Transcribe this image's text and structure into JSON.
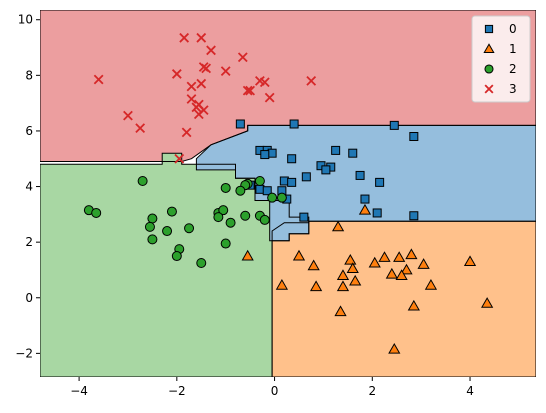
{
  "chart_data": {
    "type": "scatter",
    "subtype": "decision-regions",
    "title": "",
    "xlabel": "",
    "ylabel": "",
    "xlim": [
      -4.8,
      5.35
    ],
    "ylim": [
      -2.85,
      10.35
    ],
    "x_ticks": [
      -4,
      -2,
      0,
      2,
      4
    ],
    "x_tick_labels": [
      "−4",
      "−2",
      "0",
      "2",
      "4"
    ],
    "y_ticks": [
      -2,
      0,
      2,
      4,
      6,
      8,
      10
    ],
    "y_tick_labels": [
      "−2",
      "0",
      "2",
      "4",
      "6",
      "8",
      "10"
    ],
    "grid": false,
    "legend_position": "top-right",
    "classes": [
      {
        "name": "0",
        "marker": "square",
        "color": "#1f77b4",
        "region_color": "#95bedd"
      },
      {
        "name": "1",
        "marker": "triangle",
        "color": "#ff7f0e",
        "region_color": "#ffc18b"
      },
      {
        "name": "2",
        "marker": "circle",
        "color": "#2ca02c",
        "region_color": "#a8d7a3"
      },
      {
        "name": "3",
        "marker": "x",
        "color": "#d62728",
        "region_color": "#ec9e9f"
      }
    ],
    "regions": [
      {
        "class": "3",
        "polygon": [
          [
            -4.8,
            10.35
          ],
          [
            5.35,
            10.35
          ],
          [
            5.35,
            6.2
          ],
          [
            -0.55,
            6.2
          ],
          [
            -0.55,
            6.0
          ],
          [
            -1.3,
            5.5
          ],
          [
            -1.7,
            5.0
          ],
          [
            -1.9,
            4.9
          ],
          [
            -4.8,
            4.9
          ]
        ]
      },
      {
        "class": "2",
        "polygon": [
          [
            -4.8,
            4.8
          ],
          [
            -2.3,
            4.8
          ],
          [
            -2.3,
            5.2
          ],
          [
            -1.9,
            5.2
          ],
          [
            -1.9,
            4.8
          ],
          [
            -0.8,
            4.8
          ],
          [
            -0.8,
            4.3
          ],
          [
            -0.4,
            4.3
          ],
          [
            -0.4,
            3.5
          ],
          [
            0.3,
            3.5
          ],
          [
            0.3,
            2.9
          ],
          [
            0.7,
            2.9
          ],
          [
            0.7,
            2.7
          ],
          [
            0.2,
            2.7
          ],
          [
            -0.05,
            2.4
          ],
          [
            -0.05,
            -2.85
          ],
          [
            -4.8,
            -2.85
          ]
        ]
      },
      {
        "class": "0",
        "polygon": [
          [
            -0.55,
            6.2
          ],
          [
            5.35,
            6.2
          ],
          [
            5.35,
            2.75
          ],
          [
            0.7,
            2.75
          ],
          [
            0.7,
            2.3
          ],
          [
            0.3,
            2.3
          ],
          [
            0.3,
            2.05
          ],
          [
            -0.1,
            2.05
          ],
          [
            -0.1,
            3.5
          ],
          [
            -0.4,
            3.5
          ],
          [
            -0.4,
            4.3
          ],
          [
            -0.8,
            4.3
          ],
          [
            -0.8,
            4.6
          ],
          [
            -1.6,
            4.6
          ],
          [
            -1.6,
            5.0
          ],
          [
            -1.3,
            5.5
          ],
          [
            -0.55,
            6.0
          ]
        ]
      },
      {
        "class": "1",
        "polygon": [
          [
            -0.05,
            2.05
          ],
          [
            0.3,
            2.05
          ],
          [
            0.3,
            2.3
          ],
          [
            0.7,
            2.3
          ],
          [
            0.7,
            2.75
          ],
          [
            5.35,
            2.75
          ],
          [
            5.35,
            -2.85
          ],
          [
            -0.05,
            -2.85
          ]
        ]
      }
    ],
    "series": [
      {
        "name": "0",
        "points": [
          [
            -0.7,
            6.25
          ],
          [
            0.4,
            6.25
          ],
          [
            2.45,
            6.2
          ],
          [
            2.85,
            5.8
          ],
          [
            1.25,
            5.3
          ],
          [
            1.6,
            5.2
          ],
          [
            0.35,
            5.0
          ],
          [
            0.95,
            4.75
          ],
          [
            1.15,
            4.7
          ],
          [
            1.05,
            4.6
          ],
          [
            0.65,
            4.35
          ],
          [
            1.75,
            4.4
          ],
          [
            2.15,
            4.15
          ],
          [
            -0.3,
            5.3
          ],
          [
            -0.15,
            5.3
          ],
          [
            -0.05,
            5.2
          ],
          [
            -0.2,
            5.15
          ],
          [
            -0.5,
            4.05
          ],
          [
            -0.3,
            3.9
          ],
          [
            -0.15,
            3.85
          ],
          [
            0.15,
            3.85
          ],
          [
            0.2,
            4.2
          ],
          [
            0.35,
            4.15
          ],
          [
            0.25,
            3.55
          ],
          [
            1.85,
            3.55
          ],
          [
            2.1,
            3.05
          ],
          [
            2.85,
            2.95
          ],
          [
            0.6,
            2.9
          ]
        ]
      },
      {
        "name": "1",
        "points": [
          [
            1.85,
            3.15
          ],
          [
            1.3,
            2.55
          ],
          [
            -0.55,
            1.5
          ],
          [
            0.5,
            1.5
          ],
          [
            1.55,
            1.35
          ],
          [
            2.25,
            1.45
          ],
          [
            2.55,
            1.45
          ],
          [
            2.8,
            1.55
          ],
          [
            2.05,
            1.25
          ],
          [
            0.8,
            1.15
          ],
          [
            1.6,
            1.05
          ],
          [
            2.7,
            1.0
          ],
          [
            3.05,
            1.2
          ],
          [
            2.4,
            0.85
          ],
          [
            2.6,
            0.8
          ],
          [
            1.4,
            0.8
          ],
          [
            1.65,
            0.6
          ],
          [
            4.0,
            1.3
          ],
          [
            0.15,
            0.45
          ],
          [
            0.85,
            0.4
          ],
          [
            1.4,
            0.4
          ],
          [
            3.2,
            0.45
          ],
          [
            2.85,
            -0.3
          ],
          [
            1.35,
            -0.5
          ],
          [
            4.35,
            -0.2
          ],
          [
            2.45,
            -1.85
          ]
        ]
      },
      {
        "name": "2",
        "points": [
          [
            -2.7,
            4.2
          ],
          [
            -0.55,
            4.1
          ],
          [
            -0.6,
            4.05
          ],
          [
            -1.0,
            3.95
          ],
          [
            -0.7,
            3.85
          ],
          [
            -0.3,
            4.2
          ],
          [
            -0.05,
            3.6
          ],
          [
            0.15,
            3.6
          ],
          [
            -3.8,
            3.15
          ],
          [
            -3.65,
            3.05
          ],
          [
            -2.1,
            3.1
          ],
          [
            -1.15,
            3.05
          ],
          [
            -1.05,
            3.15
          ],
          [
            -1.15,
            2.9
          ],
          [
            -0.6,
            2.95
          ],
          [
            -0.3,
            2.95
          ],
          [
            -2.5,
            2.85
          ],
          [
            -0.9,
            2.7
          ],
          [
            -2.55,
            2.55
          ],
          [
            -1.75,
            2.5
          ],
          [
            -2.2,
            2.4
          ],
          [
            -2.5,
            2.1
          ],
          [
            -1.0,
            1.95
          ],
          [
            -1.95,
            1.75
          ],
          [
            -2.0,
            1.5
          ],
          [
            -1.5,
            1.25
          ],
          [
            -0.2,
            2.8
          ]
        ]
      },
      {
        "name": "3",
        "points": [
          [
            -3.6,
            7.85
          ],
          [
            -1.85,
            9.35
          ],
          [
            -1.5,
            9.35
          ],
          [
            -1.3,
            8.9
          ],
          [
            -0.65,
            8.65
          ],
          [
            -1.45,
            8.3
          ],
          [
            -1.4,
            8.25
          ],
          [
            -1.0,
            8.15
          ],
          [
            -2.0,
            8.05
          ],
          [
            -1.7,
            7.6
          ],
          [
            -0.3,
            7.8
          ],
          [
            -0.2,
            7.75
          ],
          [
            0.75,
            7.8
          ],
          [
            -1.5,
            7.7
          ],
          [
            -0.55,
            7.45
          ],
          [
            -0.5,
            7.45
          ],
          [
            -0.1,
            7.2
          ],
          [
            -1.7,
            7.15
          ],
          [
            -1.55,
            6.95
          ],
          [
            -1.6,
            6.85
          ],
          [
            -1.45,
            6.75
          ],
          [
            -1.55,
            6.6
          ],
          [
            -3.0,
            6.55
          ],
          [
            -2.75,
            6.1
          ],
          [
            -1.8,
            5.95
          ],
          [
            -1.95,
            5.0
          ]
        ]
      }
    ]
  }
}
